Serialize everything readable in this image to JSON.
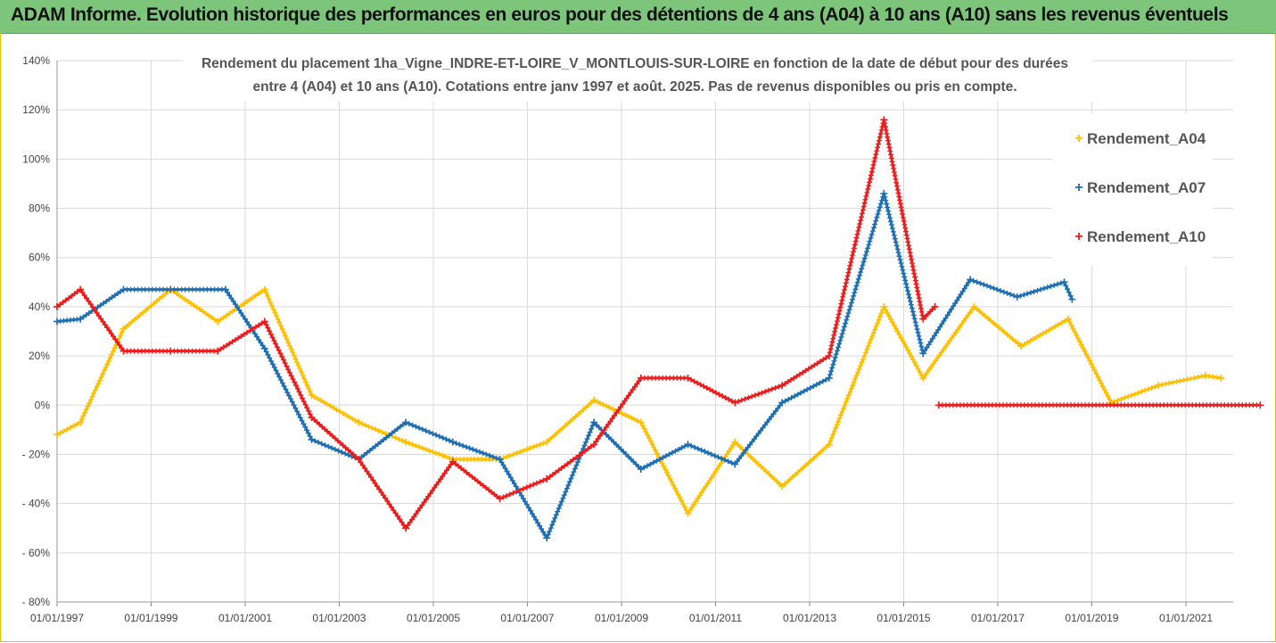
{
  "header": {
    "title": "ADAM Informe. Evolution historique des performances en euros pour des détentions de 4 ans (A04) à 10 ans (A10) sans les revenus éventuels"
  },
  "colors": {
    "A04": "#ffc000",
    "A07": "#1f6fb5",
    "A10": "#ee1c1c",
    "banner": "#7dc57b",
    "grid": "#d9d9d9"
  },
  "chart_data": {
    "type": "line",
    "title_lines": [
      "Rendement du placement 1ha_Vigne_INDRE-ET-LOIRE_V_MONTLOUIS-SUR-LOIRE en fonction de la date de début pour des durées",
      "entre 4 (A04) et 10 ans (A10). Cotations entre janv 1997 et août. 2025. Pas de revenus disponibles ou pris en compte."
    ],
    "xlabel": "",
    "ylabel": "",
    "x_range": [
      "1997-01-01",
      "2022-08-01"
    ],
    "ylim": [
      -0.8,
      1.4
    ],
    "y_ticks": [
      -0.8,
      -0.6,
      -0.4,
      -0.2,
      0,
      0.2,
      0.4,
      0.6,
      0.8,
      1.0,
      1.2,
      1.4
    ],
    "y_tick_labels": [
      "- 80%",
      "- 60%",
      "- 40%",
      "- 20%",
      "0%",
      "20%",
      "40%",
      "60%",
      "80%",
      "100%",
      "120%",
      "140%"
    ],
    "x_ticks": [
      "1997-01-01",
      "1999-01-01",
      "2001-01-01",
      "2003-01-01",
      "2005-01-01",
      "2007-01-01",
      "2009-01-01",
      "2011-01-01",
      "2013-01-01",
      "2015-01-01",
      "2017-01-01",
      "2019-01-01",
      "2021-01-01"
    ],
    "x_tick_labels": [
      "01/01/1997",
      "01/01/1999",
      "01/01/2001",
      "01/01/2003",
      "01/01/2005",
      "01/01/2007",
      "01/01/2009",
      "01/01/2011",
      "01/01/2013",
      "01/01/2015",
      "01/01/2017",
      "01/01/2019",
      "01/01/2021"
    ],
    "grid": true,
    "legend_position": "right",
    "marker": "+",
    "series": [
      {
        "name": "Rendement_A04",
        "color_key": "A04",
        "points": [
          [
            "1997-01-01",
            -0.12
          ],
          [
            "1997-07-01",
            -0.07
          ],
          [
            "1998-06-01",
            0.31
          ],
          [
            "1999-06-01",
            0.47
          ],
          [
            "2000-06-01",
            0.34
          ],
          [
            "2001-06-01",
            0.47
          ],
          [
            "2002-06-01",
            0.04
          ],
          [
            "2003-06-01",
            -0.07
          ],
          [
            "2004-06-01",
            -0.15
          ],
          [
            "2005-06-01",
            -0.22
          ],
          [
            "2006-06-01",
            -0.22
          ],
          [
            "2007-06-01",
            -0.15
          ],
          [
            "2008-06-01",
            0.02
          ],
          [
            "2009-06-01",
            -0.07
          ],
          [
            "2010-06-01",
            -0.44
          ],
          [
            "2011-06-01",
            -0.15
          ],
          [
            "2012-06-01",
            -0.33
          ],
          [
            "2013-06-01",
            -0.16
          ],
          [
            "2014-08-01",
            0.4
          ],
          [
            "2015-06-01",
            0.11
          ],
          [
            "2016-07-01",
            0.4
          ],
          [
            "2017-07-01",
            0.24
          ],
          [
            "2018-07-01",
            0.35
          ],
          [
            "2019-06-01",
            0.01
          ],
          [
            "2020-06-01",
            0.08
          ],
          [
            "2021-06-01",
            0.12
          ],
          [
            "2021-10-01",
            0.11
          ]
        ]
      },
      {
        "name": "Rendement_A07",
        "color_key": "A07",
        "points": [
          [
            "1997-01-01",
            0.34
          ],
          [
            "1997-07-01",
            0.35
          ],
          [
            "1998-06-01",
            0.47
          ],
          [
            "1999-06-01",
            0.47
          ],
          [
            "2000-08-01",
            0.47
          ],
          [
            "2001-06-01",
            0.23
          ],
          [
            "2002-06-01",
            -0.14
          ],
          [
            "2003-06-01",
            -0.22
          ],
          [
            "2004-06-01",
            -0.07
          ],
          [
            "2005-06-01",
            -0.15
          ],
          [
            "2006-06-01",
            -0.22
          ],
          [
            "2007-06-01",
            -0.54
          ],
          [
            "2008-06-01",
            -0.07
          ],
          [
            "2009-06-01",
            -0.26
          ],
          [
            "2010-06-01",
            -0.16
          ],
          [
            "2011-06-01",
            -0.24
          ],
          [
            "2012-06-01",
            0.01
          ],
          [
            "2013-06-01",
            0.11
          ],
          [
            "2014-08-01",
            0.86
          ],
          [
            "2015-06-01",
            0.21
          ],
          [
            "2016-06-01",
            0.51
          ],
          [
            "2017-06-01",
            0.44
          ],
          [
            "2018-06-01",
            0.5
          ],
          [
            "2018-08-01",
            0.43
          ]
        ]
      },
      {
        "name": "Rendement_A10",
        "color_key": "A10",
        "points": [
          [
            "1997-01-01",
            0.4
          ],
          [
            "1997-07-01",
            0.47
          ],
          [
            "1998-06-01",
            0.22
          ],
          [
            "1999-06-01",
            0.22
          ],
          [
            "2000-06-01",
            0.22
          ],
          [
            "2001-06-01",
            0.34
          ],
          [
            "2002-06-01",
            -0.05
          ],
          [
            "2003-06-01",
            -0.22
          ],
          [
            "2004-06-01",
            -0.5
          ],
          [
            "2005-06-01",
            -0.23
          ],
          [
            "2006-06-01",
            -0.38
          ],
          [
            "2007-06-01",
            -0.3
          ],
          [
            "2008-06-01",
            -0.16
          ],
          [
            "2009-06-01",
            0.11
          ],
          [
            "2010-06-01",
            0.11
          ],
          [
            "2011-06-01",
            0.01
          ],
          [
            "2012-06-01",
            0.08
          ],
          [
            "2013-06-01",
            0.2
          ],
          [
            "2014-08-01",
            1.16
          ],
          [
            "2015-06-01",
            0.35
          ],
          [
            "2015-09-01",
            0.4
          ]
        ],
        "extra_segments": [
          {
            "points": [
              [
                "2015-10-01",
                0.0
              ],
              [
                "2022-08-01",
                0.0
              ]
            ]
          }
        ]
      }
    ]
  }
}
